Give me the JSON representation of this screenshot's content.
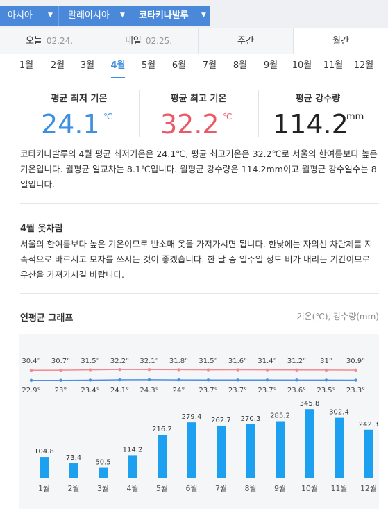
{
  "breadcrumb": {
    "items": [
      "아시아",
      "말레이시아",
      "코타키나발루"
    ]
  },
  "tabs": [
    {
      "label": "오늘",
      "date": "02.24."
    },
    {
      "label": "내일",
      "date": "02.25."
    },
    {
      "label": "주간",
      "date": ""
    },
    {
      "label": "월간",
      "date": ""
    }
  ],
  "months": [
    "1월",
    "2월",
    "3월",
    "4월",
    "5월",
    "6월",
    "7월",
    "8월",
    "9월",
    "10월",
    "11월",
    "12월"
  ],
  "selected_month": "4월",
  "stats": {
    "min": {
      "label": "평균 최저 기온",
      "value": "24.1",
      "unit": "℃",
      "color": "#3f8fe0"
    },
    "max": {
      "label": "평균 최고 기온",
      "value": "32.2",
      "unit": "℃",
      "color": "#ea5a66"
    },
    "rain": {
      "label": "평균 강수량",
      "value": "114.2",
      "unit": "mm",
      "color": "#222222"
    }
  },
  "summary": "코타키나발루의 4월 평균 최저기온은 24.1℃, 평균 최고기온은 32.2℃로 서울의 한여름보다 높은 기온입니다. 월평균 일교차는 8.1℃입니다. 월평균 강수량은 114.2mm이고 월평균 강수일수는 8일입니다.",
  "clothing": {
    "title": "4월 옷차림",
    "text": "서울의 한여름보다 높은 기온이므로 반소매 옷을 가져가시면 됩니다. 한낮에는 자외선 차단제를 지속적으로 바르시고 모자를 쓰시는 것이 좋겠습니다. 한 달 중 일주일 정도 비가 내리는 기간이므로 우산을 가져가시길 바랍니다."
  },
  "graph": {
    "title": "연평균 그래프",
    "legend": "기온(℃), 강수량(mm)"
  },
  "chart_data": {
    "type": "bar",
    "categories": [
      "1월",
      "2월",
      "3월",
      "4월",
      "5월",
      "6월",
      "7월",
      "8월",
      "9월",
      "10월",
      "11월",
      "12월"
    ],
    "series": [
      {
        "name": "최고 기온",
        "type": "line",
        "color": "#f08a92",
        "values": [
          30.4,
          30.7,
          31.5,
          32.2,
          32.1,
          31.8,
          31.5,
          31.6,
          31.4,
          31.2,
          31,
          30.9
        ],
        "labels": [
          "30.4°",
          "30.7°",
          "31.5°",
          "32.2°",
          "32.1°",
          "31.8°",
          "31.5°",
          "31.6°",
          "31.4°",
          "31.2°",
          "31°",
          "30.9°"
        ]
      },
      {
        "name": "최저 기온",
        "type": "line",
        "color": "#4c8fe6",
        "values": [
          22.9,
          23,
          23.4,
          24.1,
          24.3,
          24,
          23.7,
          23.7,
          23.7,
          23.6,
          23.5,
          23.3
        ],
        "labels": [
          "22.9°",
          "23°",
          "23.4°",
          "24.1°",
          "24.3°",
          "24°",
          "23.7°",
          "23.7°",
          "23.7°",
          "23.6°",
          "23.5°",
          "23.3°"
        ]
      },
      {
        "name": "강수량",
        "type": "bar",
        "color": "#1ea0f0",
        "values": [
          104.8,
          73.4,
          50.5,
          114.2,
          216.2,
          279.4,
          262.7,
          270.3,
          285.2,
          345.8,
          302.4,
          242.3
        ],
        "labels": [
          "104.8",
          "73.4",
          "50.5",
          "114.2",
          "216.2",
          "279.4",
          "262.7",
          "270.3",
          "285.2",
          "345.8",
          "302.4",
          "242.3"
        ]
      }
    ],
    "ylim_rain": [
      0,
      380
    ],
    "grid": false
  }
}
